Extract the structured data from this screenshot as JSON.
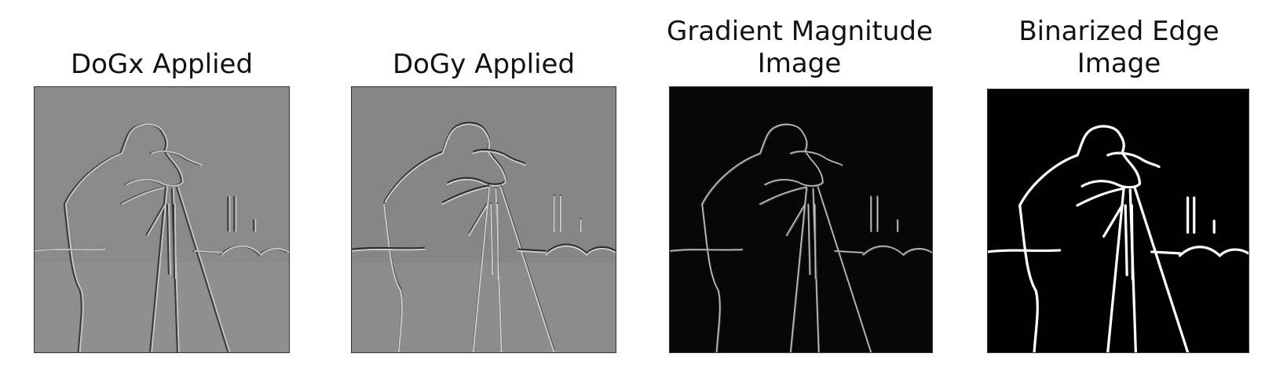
{
  "figure": {
    "panels": [
      {
        "title_lines": [
          "DoGx Applied"
        ],
        "image": "dogx-filtered-cameraman",
        "background": "#8a8a8a",
        "line_color": "#c9c9c9",
        "shadow_color": "#3a3a3a"
      },
      {
        "title_lines": [
          "DoGy Applied"
        ],
        "image": "dogy-filtered-cameraman",
        "background": "#868686",
        "line_color": "#d0d0d0",
        "shadow_color": "#2c2c2c"
      },
      {
        "title_lines": [
          "Gradient Magnitude",
          "Image"
        ],
        "image": "gradient-magnitude-cameraman",
        "background": "#070707",
        "line_color": "#bdbdbd",
        "shadow_color": "#5a5a5a"
      },
      {
        "title_lines": [
          "Binarized Edge",
          "Image"
        ],
        "image": "binarized-edge-cameraman",
        "background": "#000000",
        "line_color": "#ffffff",
        "shadow_color": "#ffffff"
      }
    ]
  }
}
